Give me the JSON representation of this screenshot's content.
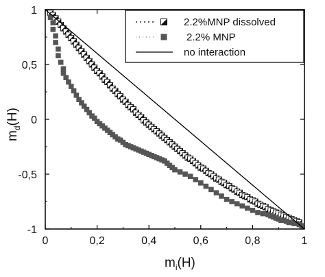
{
  "chart_data": {
    "type": "scatter",
    "xlabel_main": "m",
    "xlabel_sub": "i",
    "xlabel_tail": "(H)",
    "ylabel_main": "m",
    "ylabel_sub": "d",
    "ylabel_tail": "(H)",
    "xlim": [
      0,
      1
    ],
    "ylim": [
      -1,
      1
    ],
    "x_ticks": [
      0,
      0.2,
      0.4,
      0.6,
      0.8,
      1
    ],
    "x_tick_labels": [
      "0",
      "0,2",
      "0,4",
      "0,6",
      "0,8",
      "1"
    ],
    "y_ticks": [
      1,
      0.5,
      0,
      -0.5,
      -1
    ],
    "y_tick_labels": [
      "1",
      "0,5",
      "0",
      "-0,5",
      "-1"
    ],
    "grid": false,
    "legend_position": "top-right",
    "legend": [
      "2.2%MNP dissolved",
      "2.2% MNP",
      "no interaction"
    ],
    "series": [
      {
        "name": "2.2%MNP dissolved",
        "marker": "half-filled-square",
        "color": "#222222",
        "x": [
          0.02,
          0.03,
          0.04,
          0.05,
          0.06,
          0.07,
          0.08,
          0.09,
          0.1,
          0.11,
          0.12,
          0.13,
          0.14,
          0.15,
          0.16,
          0.17,
          0.18,
          0.19,
          0.2,
          0.21,
          0.22,
          0.23,
          0.24,
          0.25,
          0.26,
          0.27,
          0.28,
          0.29,
          0.3,
          0.31,
          0.32,
          0.33,
          0.34,
          0.35,
          0.36,
          0.37,
          0.38,
          0.39,
          0.4,
          0.41,
          0.42,
          0.43,
          0.44,
          0.45,
          0.46,
          0.47,
          0.48,
          0.49,
          0.5,
          0.51,
          0.52,
          0.53,
          0.54,
          0.55,
          0.56,
          0.57,
          0.58,
          0.59,
          0.6,
          0.61,
          0.62,
          0.63,
          0.64,
          0.65,
          0.66,
          0.67,
          0.68,
          0.69,
          0.7,
          0.71,
          0.72,
          0.73,
          0.74,
          0.75,
          0.76,
          0.77,
          0.78,
          0.79,
          0.8,
          0.81,
          0.82,
          0.83,
          0.84,
          0.85,
          0.86,
          0.87,
          0.88,
          0.89,
          0.9,
          0.91,
          0.92,
          0.93,
          0.94,
          0.95,
          0.96,
          0.97,
          0.98
        ],
        "y": [
          0.97,
          0.95,
          0.92,
          0.89,
          0.86,
          0.83,
          0.8,
          0.77,
          0.74,
          0.71,
          0.68,
          0.65,
          0.62,
          0.59,
          0.56,
          0.53,
          0.5,
          0.47,
          0.44,
          0.42,
          0.39,
          0.36,
          0.34,
          0.31,
          0.28,
          0.26,
          0.23,
          0.21,
          0.18,
          0.16,
          0.13,
          0.11,
          0.09,
          0.06,
          0.04,
          0.02,
          -0.01,
          -0.03,
          -0.05,
          -0.07,
          -0.09,
          -0.11,
          -0.13,
          -0.15,
          -0.17,
          -0.19,
          -0.21,
          -0.23,
          -0.25,
          -0.27,
          -0.29,
          -0.31,
          -0.33,
          -0.35,
          -0.36,
          -0.38,
          -0.4,
          -0.42,
          -0.44,
          -0.45,
          -0.47,
          -0.49,
          -0.5,
          -0.52,
          -0.54,
          -0.55,
          -0.57,
          -0.58,
          -0.6,
          -0.61,
          -0.63,
          -0.64,
          -0.66,
          -0.67,
          -0.69,
          -0.7,
          -0.71,
          -0.73,
          -0.74,
          -0.75,
          -0.77,
          -0.78,
          -0.79,
          -0.8,
          -0.82,
          -0.83,
          -0.84,
          -0.85,
          -0.86,
          -0.87,
          -0.88,
          -0.89,
          -0.9,
          -0.91,
          -0.92,
          -0.93,
          -0.94
        ]
      },
      {
        "name": "2.2% MNP",
        "marker": "filled-square",
        "color": "#555555",
        "x": [
          0.02,
          0.03,
          0.03,
          0.04,
          0.04,
          0.05,
          0.05,
          0.06,
          0.07,
          0.07,
          0.08,
          0.09,
          0.1,
          0.11,
          0.12,
          0.13,
          0.14,
          0.15,
          0.16,
          0.17,
          0.18,
          0.19,
          0.2,
          0.21,
          0.22,
          0.23,
          0.24,
          0.25,
          0.26,
          0.27,
          0.28,
          0.29,
          0.3,
          0.31,
          0.32,
          0.33,
          0.34,
          0.35,
          0.36,
          0.37,
          0.38,
          0.39,
          0.4,
          0.41,
          0.42,
          0.43,
          0.44,
          0.45,
          0.46,
          0.47,
          0.48,
          0.49,
          0.5,
          0.52,
          0.54,
          0.56,
          0.58,
          0.6,
          0.62,
          0.64,
          0.66,
          0.68,
          0.7,
          0.72,
          0.74,
          0.76,
          0.78,
          0.8,
          0.82,
          0.84,
          0.86,
          0.87,
          0.88,
          0.89,
          0.9,
          0.91,
          0.92,
          0.93,
          0.94,
          0.95,
          0.96,
          0.97,
          0.98,
          0.99
        ],
        "y": [
          0.93,
          0.88,
          0.82,
          0.76,
          0.7,
          0.64,
          0.58,
          0.52,
          0.46,
          0.42,
          0.38,
          0.34,
          0.3,
          0.26,
          0.22,
          0.18,
          0.15,
          0.12,
          0.09,
          0.06,
          0.03,
          0.01,
          -0.02,
          -0.04,
          -0.06,
          -0.08,
          -0.1,
          -0.12,
          -0.14,
          -0.16,
          -0.18,
          -0.19,
          -0.21,
          -0.23,
          -0.24,
          -0.25,
          -0.26,
          -0.27,
          -0.28,
          -0.29,
          -0.3,
          -0.31,
          -0.32,
          -0.33,
          -0.34,
          -0.35,
          -0.36,
          -0.37,
          -0.38,
          -0.4,
          -0.42,
          -0.44,
          -0.46,
          -0.48,
          -0.5,
          -0.52,
          -0.55,
          -0.58,
          -0.61,
          -0.64,
          -0.67,
          -0.7,
          -0.73,
          -0.75,
          -0.77,
          -0.79,
          -0.81,
          -0.83,
          -0.85,
          -0.86,
          -0.87,
          -0.88,
          -0.89,
          -0.9,
          -0.91,
          -0.92,
          -0.92,
          -0.93,
          -0.94,
          -0.94,
          -0.95,
          -0.95,
          -0.96,
          -0.97
        ]
      },
      {
        "name": "no interaction",
        "type": "line",
        "color": "#000000",
        "x": [
          0,
          1
        ],
        "y": [
          1,
          -1
        ]
      }
    ]
  }
}
